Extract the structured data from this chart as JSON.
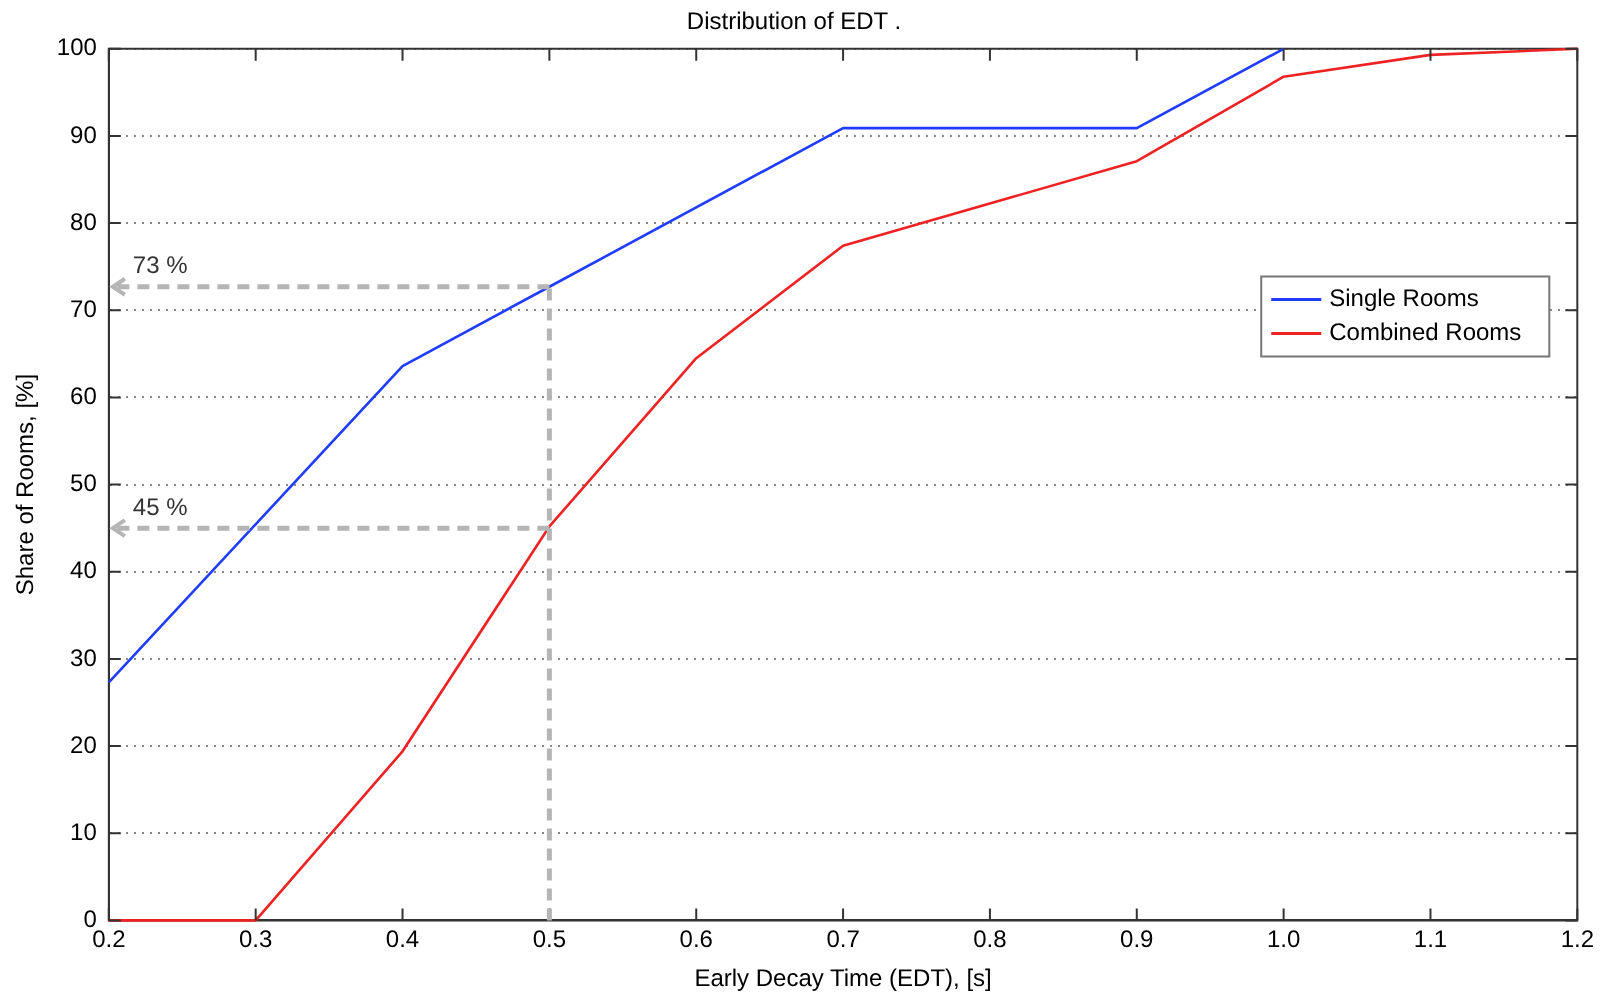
{
  "chart_data": {
    "type": "line",
    "title": "Distribution of EDT .",
    "xlabel": "Early Decay Time (EDT), [s]",
    "ylabel": "Share of Rooms, [%]",
    "series": [
      {
        "name": "Single Rooms",
        "color": "#1f3cff",
        "x": [
          0.2,
          0.4,
          0.5,
          0.7,
          0.9,
          1.0
        ],
        "values": [
          27.3,
          63.6,
          72.7,
          90.9,
          90.9,
          100
        ]
      },
      {
        "name": "Combined Rooms",
        "color": "#ee2222",
        "x": [
          0.2,
          0.3,
          0.4,
          0.5,
          0.6,
          0.7,
          0.9,
          1.0,
          1.1,
          1.2
        ],
        "values": [
          0,
          0,
          19.4,
          45.2,
          64.5,
          77.4,
          87.1,
          96.8,
          99.3,
          100
        ]
      }
    ],
    "ref_lines": [
      {
        "axis": "x",
        "value": 0.5,
        "color": "#b5b5b5",
        "line_style": "dashed"
      },
      {
        "axis": "y",
        "value": 72.7,
        "label": "73 %",
        "color": "#b5b5b5",
        "line_style": "dashed"
      },
      {
        "axis": "y",
        "value": 45,
        "label": "45 %",
        "color": "#b5b5b5",
        "line_style": "dashed"
      }
    ],
    "xlim": [
      0.2,
      1.2
    ],
    "xticks": [
      0.2,
      0.3,
      0.4,
      0.5,
      0.6,
      0.7,
      0.8,
      0.9,
      {
        "value": 1,
        "label": "1.0"
      },
      1.1,
      1.2
    ],
    "ylim": [
      0,
      100
    ],
    "yticks": [
      0,
      10,
      20,
      30,
      40,
      50,
      60,
      70,
      80,
      90,
      100
    ],
    "grid": "y",
    "legend": "right",
    "marker": "none",
    "line_style": "solid"
  }
}
